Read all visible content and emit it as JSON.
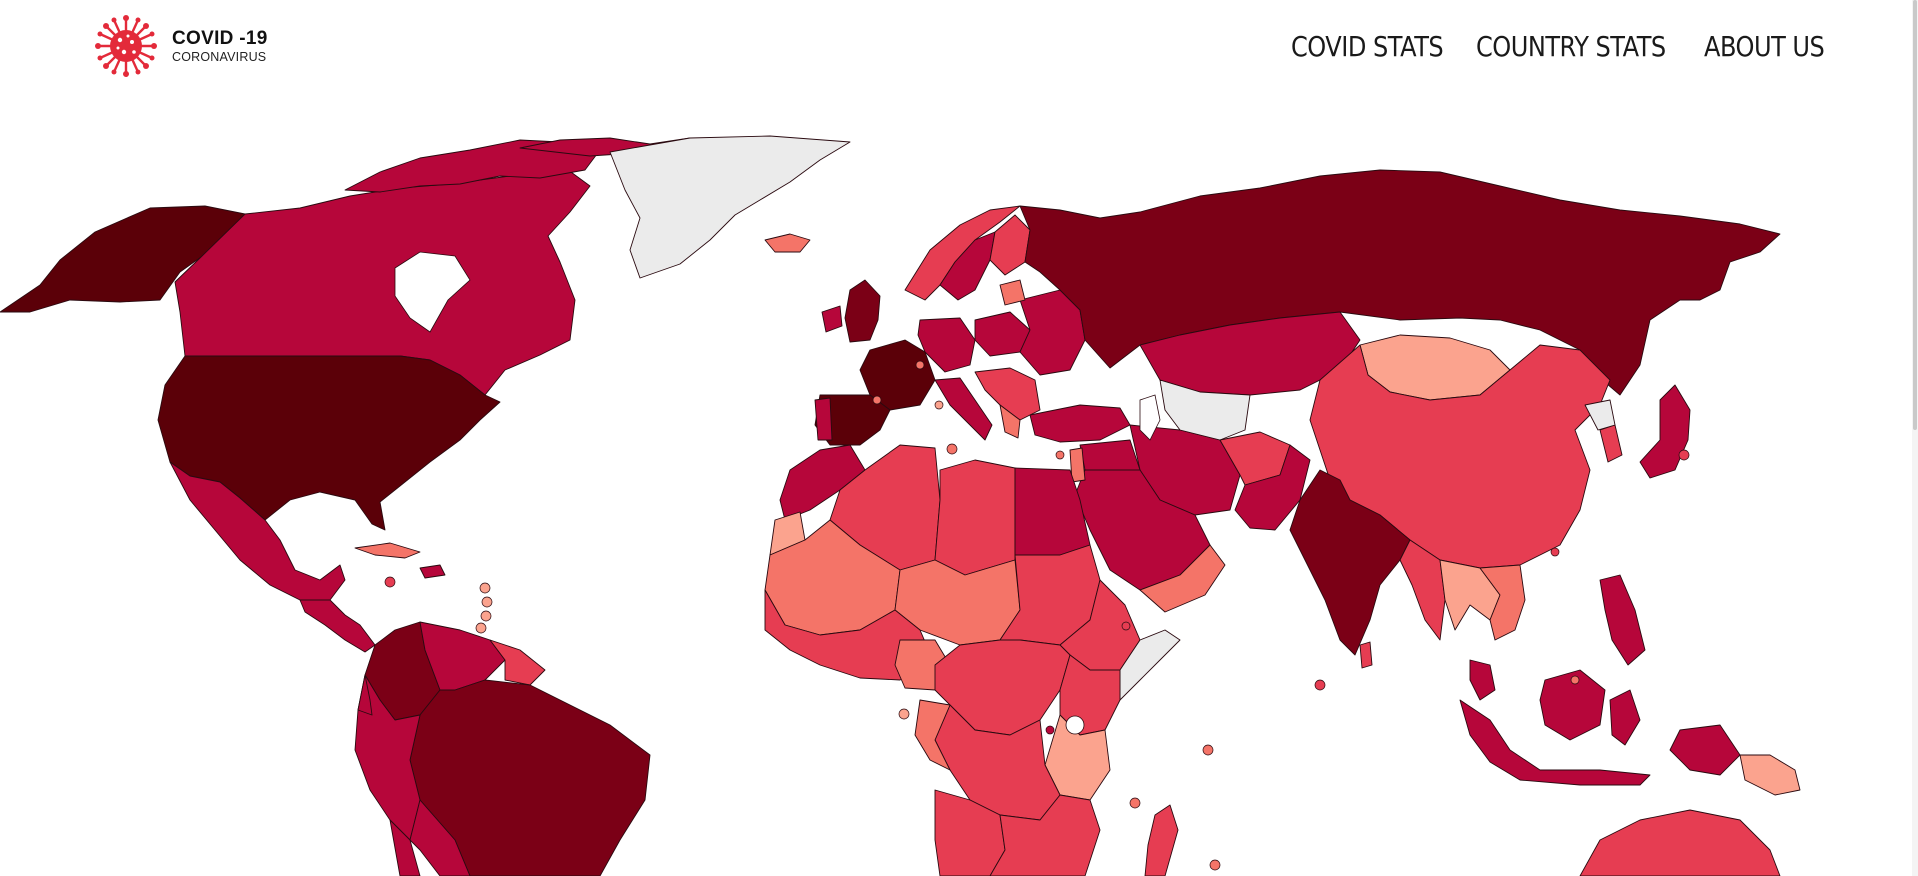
{
  "header": {
    "logo_title": "COVID -19",
    "logo_subtitle": "CORONAVIRUS",
    "logo_icon": "virus-icon"
  },
  "nav": {
    "items": [
      {
        "label": "COVID STATS"
      },
      {
        "label": "COUNTRY STATS"
      },
      {
        "label": "ABOUT US"
      }
    ]
  },
  "colors": {
    "very_high": "#5b0008",
    "high": "#7b0016",
    "med_high": "#b6063a",
    "medium": "#e63d52",
    "low": "#f47468",
    "very_low": "#fba38e",
    "no_data": "#ebebeb",
    "logo_red": "#e32a3a"
  }
}
